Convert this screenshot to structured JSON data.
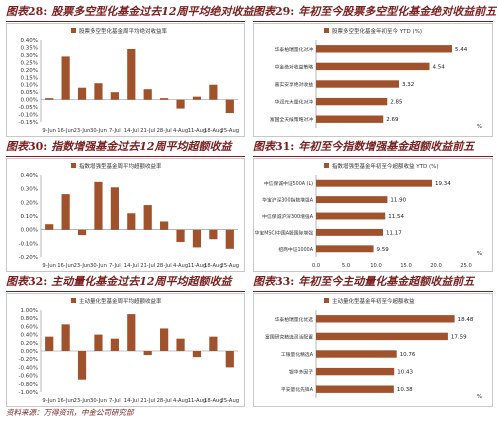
{
  "panels": [
    {
      "title_prefix": "图表",
      "title_num": "28:",
      "title_text": "股票多空型化基金过去12周平均绝对收益",
      "chart_data": {
        "type": "bar",
        "orientation": "vertical",
        "legend": "股票多空型化基金周平均绝对收益率",
        "legend_position": "top",
        "categories": [
          "9-Jun",
          "16-Jun",
          "23-Jun",
          "30-Jun",
          "7-Jul",
          "14-Jul",
          "21-Jul",
          "28-Jul",
          "4-Aug",
          "11-Aug",
          "18-Aug",
          "25-Aug"
        ],
        "tick_labels": [
          "9-Jun",
          "16-Jun",
          "23-Jun",
          "30-Jun",
          "7-Jul",
          "14-Jul",
          "21-Jul",
          "28-Jul",
          "4-Aug",
          "11-Aug",
          "18-Aug",
          "25-Aug"
        ],
        "values": [
          0.01,
          0.29,
          0.08,
          0.11,
          0.05,
          0.34,
          0.07,
          0.01,
          -0.06,
          0.02,
          0.1,
          -0.09
        ],
        "ylim": [
          -0.15,
          0.4
        ],
        "yticks": [
          -0.15,
          -0.1,
          -0.05,
          0.0,
          0.05,
          0.1,
          0.15,
          0.2,
          0.25,
          0.3,
          0.35,
          0.4
        ],
        "ytick_labels": [
          "-0.15%",
          "-0.10%",
          "-0.05%",
          "0.00%",
          "0.05%",
          "0.10%",
          "0.15%",
          "0.20%",
          "0.25%",
          "0.30%",
          "0.35%",
          "0.40%"
        ],
        "grid": false,
        "color": "#a0522d"
      }
    },
    {
      "title_prefix": "图表",
      "title_num": "29:",
      "title_text": "年初至今股票多空型化基金绝对收益前五",
      "chart_data": {
        "type": "bar",
        "orientation": "horizontal",
        "legend": "股票多空型化基金年初至今 YTD (%)",
        "legend_position": "top",
        "categories": [
          "华泰柏瑞量化对冲",
          "中金绝对收益策略",
          "嘉实安享绝对收益",
          "华润元大量化对冲",
          "富国全天候策略对冲"
        ],
        "values": [
          5.44,
          4.54,
          3.32,
          2.85,
          2.69
        ],
        "value_labels": [
          "5.44",
          "4.54",
          "3.32",
          "2.85",
          "2.69"
        ],
        "xlim": [
          0,
          6
        ],
        "unit_label": "%",
        "grid": false,
        "color": "#a0522d"
      }
    },
    {
      "title_prefix": "图表",
      "title_num": "30:",
      "title_text": "指数增强基金过去12周平均超额收益",
      "chart_data": {
        "type": "bar",
        "orientation": "vertical",
        "legend": "指数增强型基金周平均超额收益率",
        "legend_position": "top",
        "categories": [
          "9-Jun",
          "16-Jun",
          "23-Jun",
          "30-Jun",
          "7-Jul",
          "14-Jul",
          "21-Jul",
          "28-Jul",
          "4-Aug",
          "11-Aug",
          "18-Aug",
          "25-Aug"
        ],
        "tick_labels": [
          "9-Jun",
          "16-Jun",
          "23-Jun",
          "30-Jun",
          "7-Jul",
          "14-Jul",
          "21-Jul",
          "28-Jul",
          "4-Aug",
          "11-Aug",
          "18-Aug",
          "25-Aug"
        ],
        "values": [
          0.04,
          0.26,
          -0.04,
          0.35,
          0.31,
          0.12,
          0.18,
          0.06,
          -0.09,
          -0.13,
          -0.07,
          -0.14
        ],
        "ylim": [
          -0.2,
          0.4
        ],
        "yticks": [
          -0.2,
          -0.1,
          0.0,
          0.1,
          0.2,
          0.3,
          0.4
        ],
        "ytick_labels": [
          "-0.20%",
          "-0.10%",
          "0.00%",
          "0.10%",
          "0.20%",
          "0.30%",
          "0.40%"
        ],
        "grid": false,
        "color": "#a0522d"
      }
    },
    {
      "title_prefix": "图表",
      "title_num": "31:",
      "title_text": "年初至今指数增强基金超额收益前五",
      "chart_data": {
        "type": "bar",
        "orientation": "horizontal",
        "legend": "指数增强型基金年初至今超额收益 YTD (%)",
        "legend_position": "top",
        "categories": [
          "中信保诚中证500A (L)",
          "华宝沪深300指数增强A",
          "中信保诚沪深300增强A",
          "华宝MSCI中国A股国际增强",
          "招商中证1000A"
        ],
        "values": [
          19.34,
          11.9,
          11.54,
          11.17,
          9.59
        ],
        "value_labels": [
          "19.34",
          "11.90",
          "11.54",
          "11.17",
          "9.59"
        ],
        "xlim": [
          0,
          25
        ],
        "xticks": [
          0,
          5,
          10,
          15,
          20,
          25
        ],
        "xtick_labels": [
          "0.0",
          "5.0",
          "10.0",
          "15.0",
          "20.0",
          "25.0"
        ],
        "unit_label": "%",
        "grid": false,
        "color": "#a0522d"
      }
    },
    {
      "title_prefix": "图表",
      "title_num": "32:",
      "title_text": "主动量化基金过去12周平均超额收益",
      "chart_data": {
        "type": "bar",
        "orientation": "vertical",
        "legend": "主动量化型基金周平均超额收益率",
        "legend_position": "top",
        "categories": [
          "9-Jun",
          "16-Jun",
          "23-Jun",
          "30-Jun",
          "7-Jul",
          "14-Jul",
          "21-Jul",
          "28-Jul",
          "4-Aug",
          "11-Aug",
          "18-Aug",
          "25-Aug"
        ],
        "tick_labels": [
          "9-Jun",
          "16-Jun",
          "23-Jun",
          "30-Jun",
          "7-Jul",
          "14-Jul",
          "21-Jul",
          "28-Jul",
          "4-Aug",
          "11-Aug",
          "18-Aug",
          "25-Aug"
        ],
        "values": [
          0.35,
          0.65,
          -0.7,
          0.4,
          0.3,
          0.9,
          -0.1,
          0.55,
          0.3,
          -0.15,
          0.35,
          -0.4
        ],
        "ylim": [
          -1.0,
          1.0
        ],
        "yticks": [
          -1.0,
          -0.8,
          -0.6,
          -0.4,
          -0.2,
          0.0,
          0.2,
          0.4,
          0.6,
          0.8,
          1.0
        ],
        "ytick_labels": [
          "-1.00%",
          "-0.80%",
          "-0.60%",
          "-0.40%",
          "-0.20%",
          "0.00%",
          "0.20%",
          "0.40%",
          "0.60%",
          "0.80%",
          "1.00%"
        ],
        "grid": false,
        "color": "#a0522d"
      }
    },
    {
      "title_prefix": "图表",
      "title_num": "33:",
      "title_text": "年初至今主动量化基金超额收益前五",
      "chart_data": {
        "type": "bar",
        "orientation": "horizontal",
        "legend": "主动量化型基金年初至今超额收益",
        "legend_position": "top",
        "categories": [
          "华泰柏瑞量化优选",
          "富国研究精选灵活配置",
          "工银量化精选A",
          "银华多因子",
          "平安量化先锋A"
        ],
        "values": [
          18.48,
          17.59,
          10.76,
          10.43,
          10.38
        ],
        "value_labels": [
          "18.48",
          "17.59",
          "10.76",
          "10.43",
          "10.38"
        ],
        "xlim": [
          0,
          20
        ],
        "unit_label": "%",
        "grid": false,
        "color": "#a0522d"
      }
    }
  ],
  "source": "资料来源：万得资讯，中金公司研究部"
}
